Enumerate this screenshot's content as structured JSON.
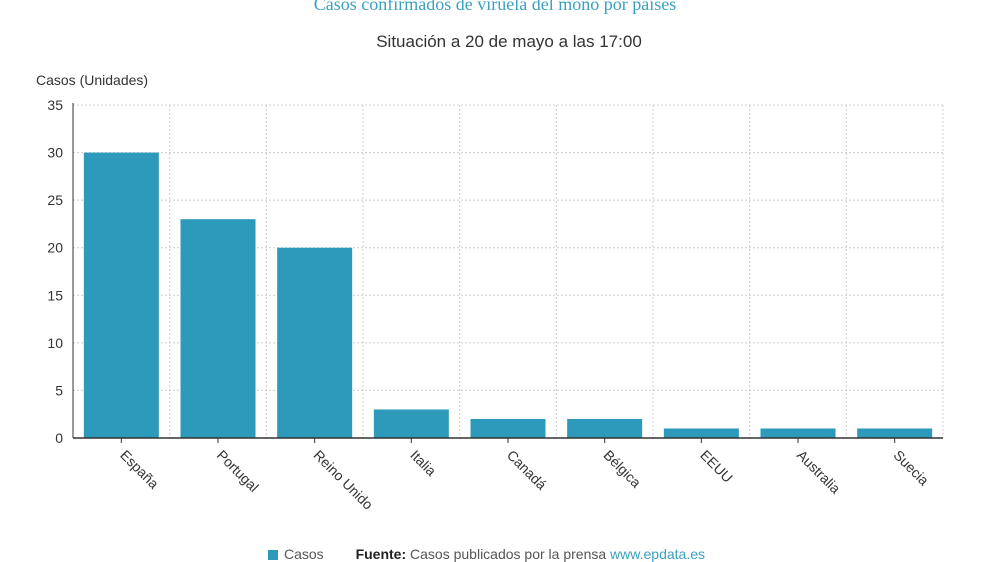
{
  "chart_data": {
    "type": "bar",
    "title": "Casos confirmados de viruela del mono por países",
    "subtitle": "Situación a 20 de mayo a las 17:00",
    "ylabel": "Casos (Unidades)",
    "xlabel": "",
    "categories": [
      "España",
      "Portugal",
      "Reino Unido",
      "Italia",
      "Canadá",
      "Bélgica",
      "EEUU",
      "Australia",
      "Suecia"
    ],
    "series": [
      {
        "name": "Casos",
        "values": [
          30,
          23,
          20,
          3,
          2,
          2,
          1,
          1,
          1
        ],
        "color": "#2e9abb"
      }
    ],
    "ylim": [
      0,
      35
    ],
    "yticks": [
      0,
      5,
      10,
      15,
      20,
      25,
      30,
      35
    ],
    "grid": true,
    "legend_position": "bottom"
  },
  "legend": {
    "series_label": "Casos",
    "source_label": "Fuente:",
    "source_text": "Casos publicados por la prensa",
    "source_link": "www.epdata.es"
  },
  "colors": {
    "title": "#3aa1c1",
    "bar": "#2e9abb",
    "grid": "#cccccc",
    "axis": "#333333"
  }
}
